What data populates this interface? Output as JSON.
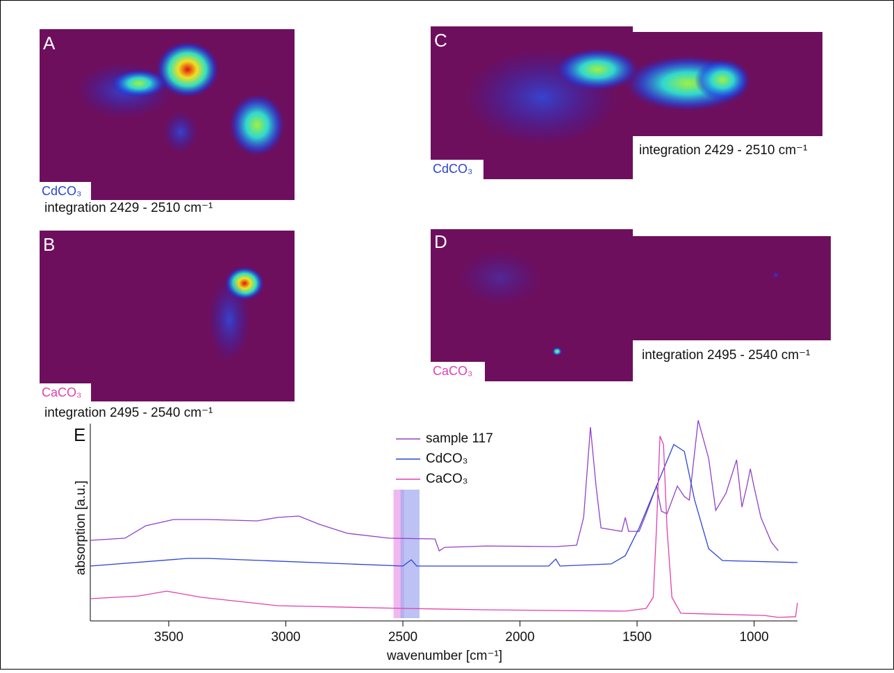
{
  "panels": [
    {
      "label": "A",
      "species": "CdCO₃",
      "caption": "integration 2429 - 2510 cm⁻¹"
    },
    {
      "label": "B",
      "species": "CaCO₃",
      "caption": "integration 2495 - 2540 cm⁻¹"
    },
    {
      "label": "C",
      "species": "CdCO₃",
      "caption": "integration 2429 - 2510 cm⁻¹"
    },
    {
      "label": "D",
      "species": "CaCO₃",
      "caption": "integration 2495 - 2540 cm⁻¹"
    }
  ],
  "chart_data": {
    "type": "line",
    "label": "E",
    "x_label": "wavenumber [cm⁻¹]",
    "y_label": "absorption [a.u.]",
    "xlim": [
      3835,
      815
    ],
    "ylim": [
      0,
      105
    ],
    "xticks": [
      3500,
      3000,
      2500,
      2000,
      1500,
      1000
    ],
    "highlights": [
      {
        "from": 2540,
        "to": 2495,
        "color": "#e89ae8"
      },
      {
        "from": 2510,
        "to": 2429,
        "color": "#9fa8f0"
      }
    ],
    "series": [
      {
        "name": "sample 117",
        "color": "#9040c8",
        "x": [
          3835,
          3687,
          3598,
          3479,
          3331,
          3123,
          3034,
          2945,
          2856,
          2737,
          2559,
          2363,
          2345,
          2322,
          2144,
          1847,
          1758,
          1728,
          1699,
          1675,
          1654,
          1565,
          1550,
          1536,
          1491,
          1461,
          1417,
          1396,
          1372,
          1328,
          1298,
          1277,
          1239,
          1194,
          1164,
          1120,
          1075,
          1052,
          1031,
          1016,
          1001,
          971,
          927,
          897
        ],
        "values": [
          40,
          41.1,
          47.5,
          50.7,
          50.7,
          50,
          51.8,
          52.5,
          48.2,
          43.6,
          41.1,
          40.7,
          34.6,
          36.4,
          37.1,
          36.8,
          37.5,
          51.8,
          98.2,
          67.9,
          46.4,
          44.6,
          51.8,
          44.6,
          44.6,
          53.6,
          67.9,
          55,
          53.6,
          67.9,
          62.5,
          60.7,
          101.8,
          82.1,
          55.4,
          64.3,
          81.4,
          57.1,
          67.9,
          76.8,
          67.9,
          51.8,
          39.3,
          34.6
        ]
      },
      {
        "name": "CdCO₃",
        "color": "#2a45d0",
        "x": [
          3835,
          3420,
          3331,
          2737,
          2500,
          2464,
          2441,
          1877,
          1847,
          1829,
          1610,
          1550,
          1491,
          1417,
          1343,
          1298,
          1254,
          1194,
          1135,
          815
        ],
        "values": [
          26.8,
          30.7,
          30.7,
          27.9,
          26.8,
          30,
          26.8,
          26.8,
          30.4,
          26.8,
          27.9,
          32.1,
          46.4,
          67.9,
          89.3,
          85.7,
          60.7,
          35.7,
          29.6,
          28.6
        ]
      },
      {
        "name": "CaCO₃",
        "color": "#e040b0",
        "x": [
          3835,
          3628,
          3509,
          3361,
          3034,
          2500,
          2144,
          1550,
          1461,
          1431,
          1417,
          1402,
          1387,
          1372,
          1351,
          1313,
          957,
          897,
          823,
          815
        ],
        "values": [
          10,
          11.4,
          13.9,
          10.7,
          6.4,
          5,
          4.3,
          3.6,
          5,
          10.7,
          46.4,
          93.6,
          89.3,
          46.4,
          10.7,
          2.5,
          1.4,
          0.4,
          0.7,
          7.9
        ]
      }
    ]
  }
}
